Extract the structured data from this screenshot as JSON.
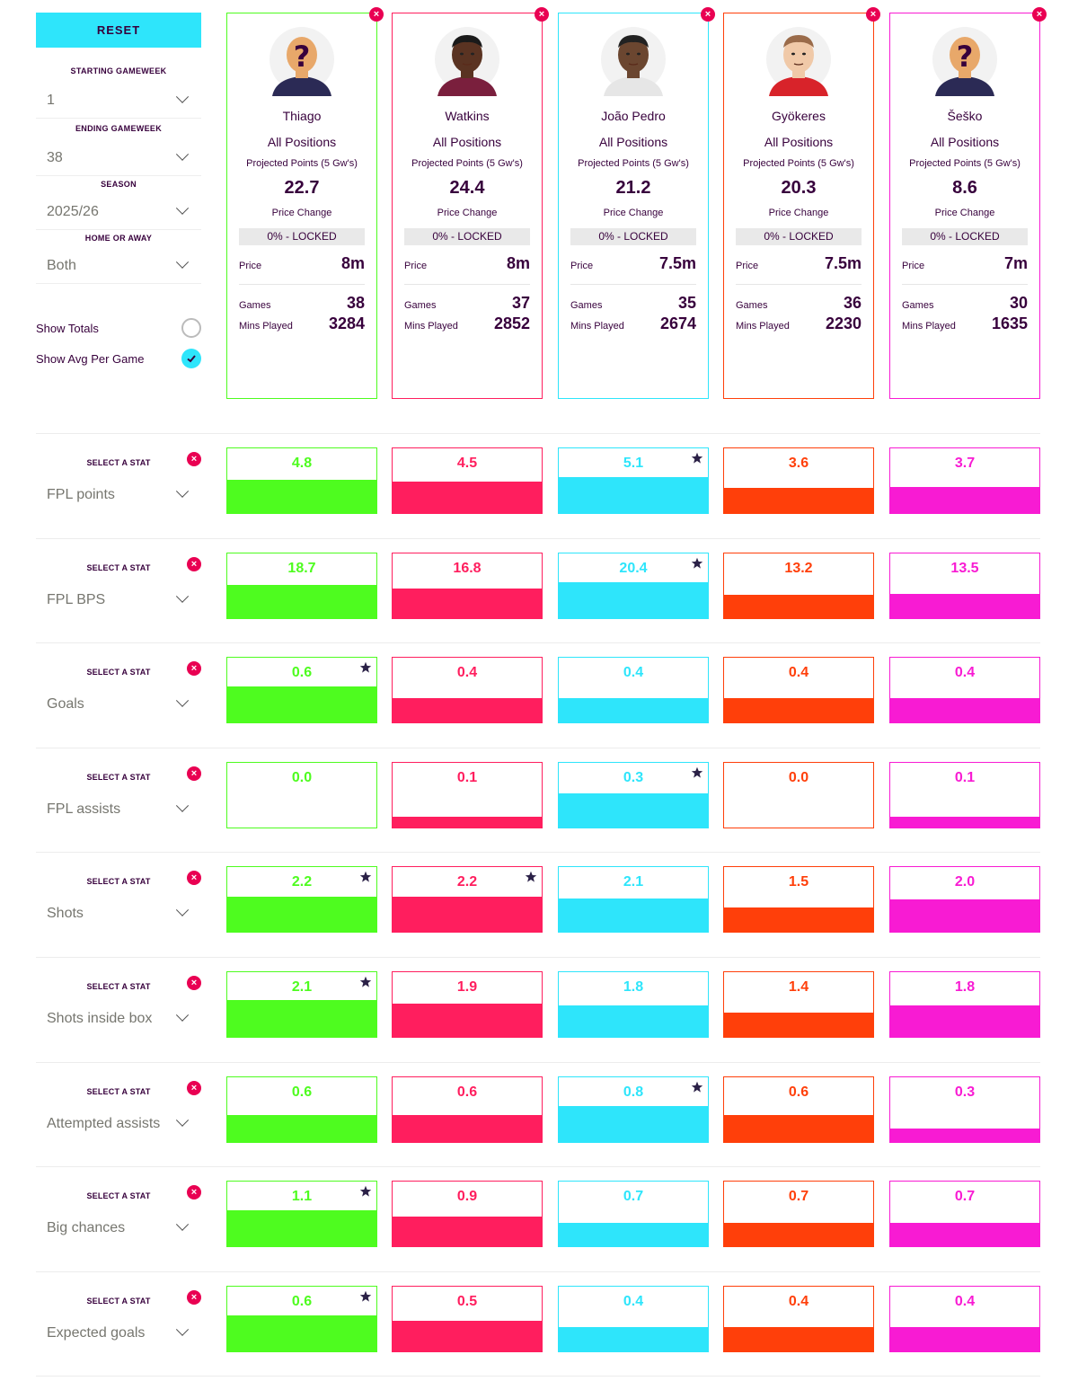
{
  "sidebar": {
    "reset_label": "RESET",
    "filters": [
      {
        "label": "STARTING GAMEWEEK",
        "value": "1"
      },
      {
        "label": "ENDING GAMEWEEK",
        "value": "38"
      },
      {
        "label": "SEASON",
        "value": "2025/26"
      },
      {
        "label": "HOME OR AWAY",
        "value": "Both"
      }
    ],
    "show_totals": {
      "label": "Show Totals",
      "checked": false
    },
    "show_avg": {
      "label": "Show Avg Per Game",
      "checked": true
    }
  },
  "colors": {
    "accent": "#2ee5fb",
    "remove": "#e90052",
    "players": [
      "#4efc1f",
      "#ff1e5e",
      "#2ee5fb",
      "#ff3f0a",
      "#f81bd3"
    ]
  },
  "players": [
    {
      "name": "Thiago",
      "position": "All Positions",
      "proj_label": "Projected Points (5 Gw's)",
      "proj": "22.7",
      "pc_label": "Price Change",
      "lock": "0% - LOCKED",
      "price_label": "Price",
      "price": "8m",
      "games_label": "Games",
      "games": "38",
      "mins_label": "Mins Played",
      "mins": "3284",
      "avatar": "unknown-player-avatar"
    },
    {
      "name": "Watkins",
      "position": "All Positions",
      "proj_label": "Projected Points (5 Gw's)",
      "proj": "24.4",
      "pc_label": "Price Change",
      "lock": "0% - LOCKED",
      "price_label": "Price",
      "price": "8m",
      "games_label": "Games",
      "games": "37",
      "mins_label": "Mins Played",
      "mins": "2852",
      "avatar": "player-avatar"
    },
    {
      "name": "João Pedro",
      "position": "All Positions",
      "proj_label": "Projected Points (5 Gw's)",
      "proj": "21.2",
      "pc_label": "Price Change",
      "lock": "0% - LOCKED",
      "price_label": "Price",
      "price": "7.5m",
      "games_label": "Games",
      "games": "35",
      "mins_label": "Mins Played",
      "mins": "2674",
      "avatar": "player-avatar"
    },
    {
      "name": "Gyökeres",
      "position": "All Positions",
      "proj_label": "Projected Points (5 Gw's)",
      "proj": "20.3",
      "pc_label": "Price Change",
      "lock": "0% - LOCKED",
      "price_label": "Price",
      "price": "7.5m",
      "games_label": "Games",
      "games": "36",
      "mins_label": "Mins Played",
      "mins": "2230",
      "avatar": "player-avatar"
    },
    {
      "name": "Šeško",
      "position": "All Positions",
      "proj_label": "Projected Points (5 Gw's)",
      "proj": "8.6",
      "pc_label": "Price Change",
      "lock": "0% - LOCKED",
      "price_label": "Price",
      "price": "7m",
      "games_label": "Games",
      "games": "30",
      "mins_label": "Mins Played",
      "mins": "1635",
      "avatar": "unknown-player-avatar"
    }
  ],
  "stat_select_label": "SELECT A STAT",
  "stats": [
    {
      "name": "FPL points",
      "values": [
        "4.8",
        "4.5",
        "5.1",
        "3.6",
        "3.7"
      ],
      "fill": [
        0.52,
        0.48,
        0.56,
        0.39,
        0.4
      ],
      "best": [
        2
      ]
    },
    {
      "name": "FPL BPS",
      "values": [
        "18.7",
        "16.8",
        "20.4",
        "13.2",
        "13.5"
      ],
      "fill": [
        0.52,
        0.46,
        0.56,
        0.36,
        0.37
      ],
      "best": [
        2
      ]
    },
    {
      "name": "Goals",
      "values": [
        "0.6",
        "0.4",
        "0.4",
        "0.4",
        "0.4"
      ],
      "fill": [
        0.56,
        0.37,
        0.37,
        0.37,
        0.37
      ],
      "best": [
        0
      ]
    },
    {
      "name": "FPL assists",
      "values": [
        "0.0",
        "0.1",
        "0.3",
        "0.0",
        "0.1"
      ],
      "fill": [
        0.0,
        0.17,
        0.53,
        0.0,
        0.17
      ],
      "best": [
        2
      ]
    },
    {
      "name": "Shots",
      "values": [
        "2.2",
        "2.2",
        "2.1",
        "1.5",
        "2.0"
      ],
      "fill": [
        0.54,
        0.54,
        0.52,
        0.37,
        0.5
      ],
      "best": [
        0,
        1
      ]
    },
    {
      "name": "Shots inside box",
      "values": [
        "2.1",
        "1.9",
        "1.8",
        "1.4",
        "1.8"
      ],
      "fill": [
        0.57,
        0.52,
        0.49,
        0.38,
        0.49
      ],
      "best": [
        0
      ]
    },
    {
      "name": "Attempted assists",
      "values": [
        "0.6",
        "0.6",
        "0.8",
        "0.6",
        "0.3"
      ],
      "fill": [
        0.42,
        0.42,
        0.56,
        0.42,
        0.21
      ],
      "best": [
        2
      ]
    },
    {
      "name": "Big chances",
      "values": [
        "1.1",
        "0.9",
        "0.7",
        "0.7",
        "0.7"
      ],
      "fill": [
        0.56,
        0.46,
        0.36,
        0.36,
        0.36
      ],
      "best": [
        0
      ]
    },
    {
      "name": "Expected goals",
      "values": [
        "0.6",
        "0.5",
        "0.4",
        "0.4",
        "0.4"
      ],
      "fill": [
        0.56,
        0.47,
        0.37,
        0.37,
        0.37
      ],
      "best": [
        0
      ]
    }
  ]
}
